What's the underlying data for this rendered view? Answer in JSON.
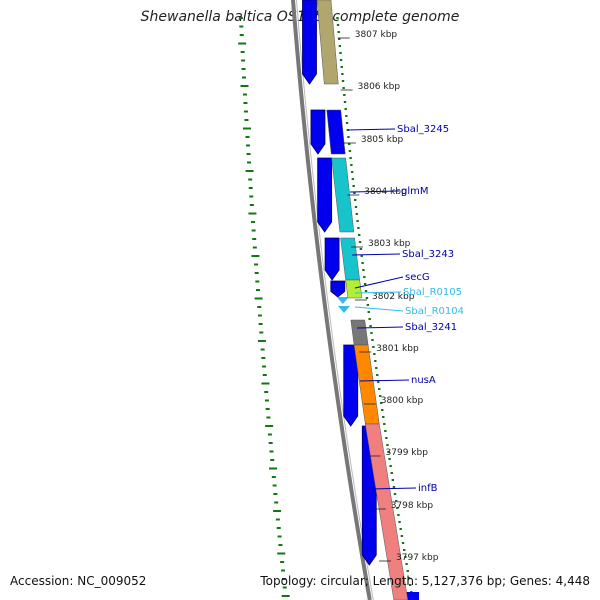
{
  "title": "Shewanella baltica OS155, complete genome",
  "footer": {
    "accession": "Accession: NC_009052",
    "topology": "Topology: circular; Length: 5,127,376 bp; Genes: 4,448"
  },
  "ruler_ticks": [
    {
      "label": "3807 kbp"
    },
    {
      "label": "3806 kbp"
    },
    {
      "label": "3805 kbp"
    },
    {
      "label": "3804 kbp"
    },
    {
      "label": "3803 kbp"
    },
    {
      "label": "3802 kbp"
    },
    {
      "label": "3801 kbp"
    },
    {
      "label": "3800 kbp"
    },
    {
      "label": "3799 kbp"
    },
    {
      "label": "3798 kbp"
    },
    {
      "label": "3797 kbp"
    }
  ],
  "gene_labels": [
    {
      "name": "Sbal_3245",
      "color": "#0000aa"
    },
    {
      "name": "glmM",
      "color": "#0000aa"
    },
    {
      "name": "Sbal_3243",
      "color": "#0000aa"
    },
    {
      "name": "secG",
      "color": "#0000aa"
    },
    {
      "name": "Sbal_R0105",
      "color": "#33bbee"
    },
    {
      "name": "Sbal_R0104",
      "color": "#33bbee"
    },
    {
      "name": "Sbal_3241",
      "color": "#0000aa"
    },
    {
      "name": "nusA",
      "color": "#0000aa"
    },
    {
      "name": "infB",
      "color": "#0000aa"
    }
  ],
  "colors": {
    "cds": "#0000ee",
    "trna": "#33bbee",
    "backbone": "#777777",
    "gc_skew": "#117711"
  }
}
